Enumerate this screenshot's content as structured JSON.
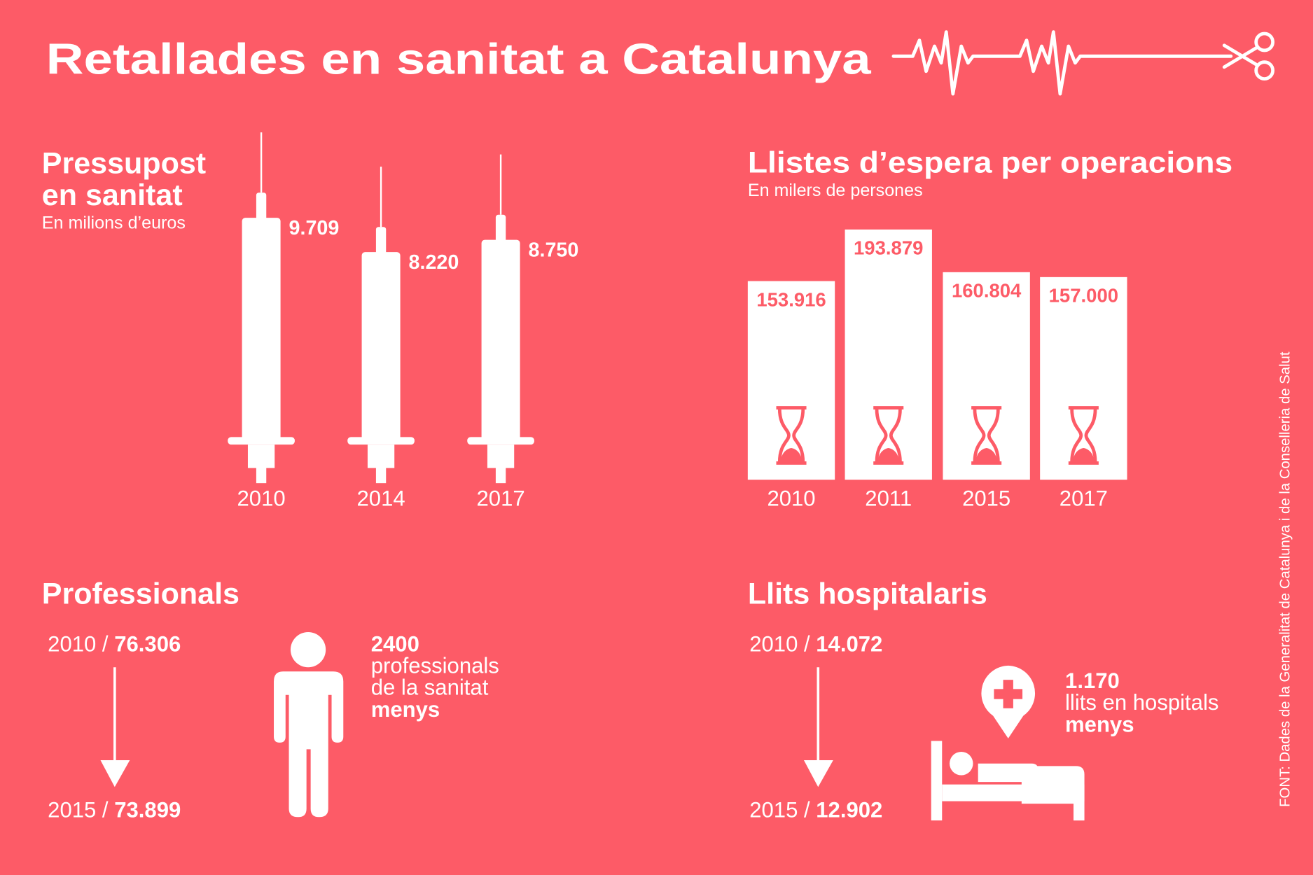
{
  "title": "Retallades en sanitat a Catalunya",
  "chart_data": [
    {
      "type": "bar",
      "title": [
        "Pressupost",
        "en sanitat"
      ],
      "subtitle": "En milions d’euros",
      "categories": [
        "2010",
        "2014",
        "2017"
      ],
      "values": [
        9709,
        8220,
        8750
      ],
      "value_labels": [
        "9.709",
        "8.220",
        "8.750"
      ],
      "color": "#ffffff"
    },
    {
      "type": "bar",
      "title": "Llistes d’espera per operacions",
      "subtitle": "En milers de persones",
      "categories": [
        "2010",
        "2011",
        "2015",
        "2017"
      ],
      "values": [
        153916,
        193879,
        160804,
        157000
      ],
      "value_labels": [
        "153.916",
        "193.879",
        "160.804",
        "157.000"
      ],
      "color": "#ffffff"
    }
  ],
  "professionals": {
    "title": "Professionals",
    "from": {
      "label": "2010 /",
      "value": "76.306"
    },
    "to": {
      "label": "2015 /",
      "value": "73.899"
    },
    "difference": "2400",
    "description": [
      "professionals",
      "de la sanitat"
    ],
    "emphasis": "menys"
  },
  "beds": {
    "title": "Llits hospitalaris",
    "from": {
      "label": "2010 /",
      "value": "14.072"
    },
    "to": {
      "label": "2015 /",
      "value": "12.902"
    },
    "difference": "1.170",
    "description": [
      "llits en hospitals"
    ],
    "emphasis": "menys"
  },
  "source": "FONT: Dades de la Generalitat de Catalunya i de la Conselleria de Salut"
}
